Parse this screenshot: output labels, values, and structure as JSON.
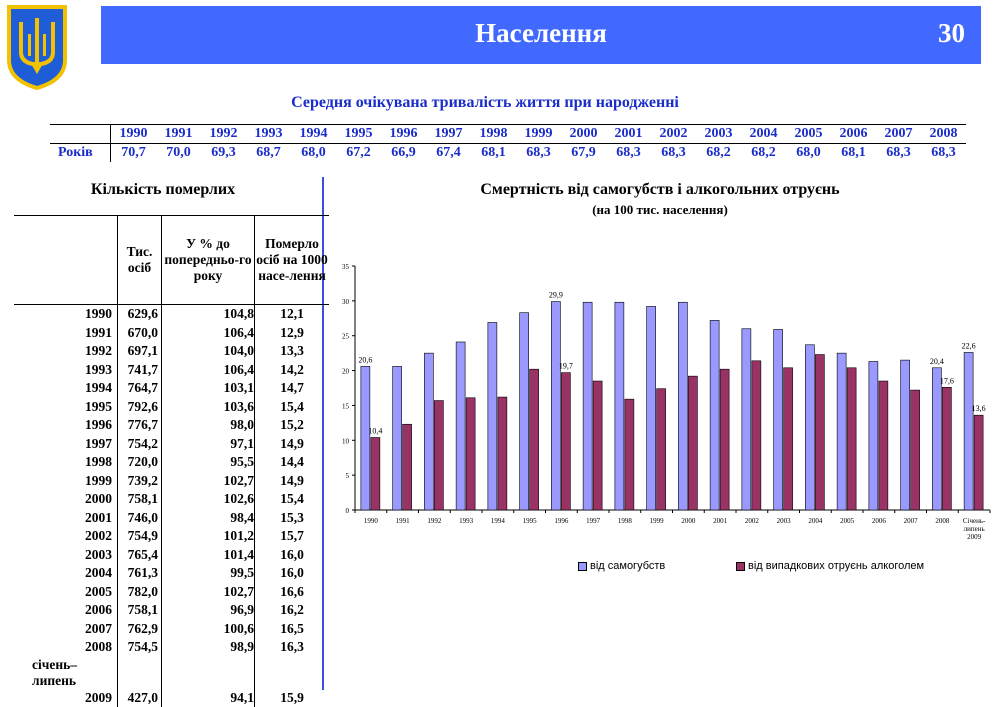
{
  "header": {
    "title": "Населення",
    "page_number": "30"
  },
  "life_expectancy": {
    "title": "Середня очікувана тривалість життя при народженні",
    "row_label": "Років",
    "years": [
      "1990",
      "1991",
      "1992",
      "1993",
      "1994",
      "1995",
      "1996",
      "1997",
      "1998",
      "1999",
      "2000",
      "2001",
      "2002",
      "2003",
      "2004",
      "2005",
      "2006",
      "2007",
      "2008"
    ],
    "values": [
      "70,7",
      "70,0",
      "69,3",
      "68,7",
      "68,0",
      "67,2",
      "66,9",
      "67,4",
      "68,1",
      "68,3",
      "67,9",
      "68,3",
      "68,3",
      "68,2",
      "68,2",
      "68,0",
      "68,1",
      "68,3",
      "68,3"
    ]
  },
  "deaths_table": {
    "title": "Кількість померлих",
    "headers": [
      "",
      "Тис. осіб",
      "У % до попередньо-го року",
      "Померло осіб на 1000 насе-лення"
    ],
    "rows": [
      [
        "1990",
        "629,6",
        "104,8",
        "12,1"
      ],
      [
        "1991",
        "670,0",
        "106,4",
        "12,9"
      ],
      [
        "1992",
        "697,1",
        "104,0",
        "13,3"
      ],
      [
        "1993",
        "741,7",
        "106,4",
        "14,2"
      ],
      [
        "1994",
        "764,7",
        "103,1",
        "14,7"
      ],
      [
        "1995",
        "792,6",
        "103,6",
        "15,4"
      ],
      [
        "1996",
        "776,7",
        "98,0",
        "15,2"
      ],
      [
        "1997",
        "754,2",
        "97,1",
        "14,9"
      ],
      [
        "1998",
        "720,0",
        "95,5",
        "14,4"
      ],
      [
        "1999",
        "739,2",
        "102,7",
        "14,9"
      ],
      [
        "2000",
        "758,1",
        "102,6",
        "15,4"
      ],
      [
        "2001",
        "746,0",
        "98,4",
        "15,3"
      ],
      [
        "2002",
        "754,9",
        "101,2",
        "15,7"
      ],
      [
        "2003",
        "765,4",
        "101,4",
        "16,0"
      ],
      [
        "2004",
        "761,3",
        "99,5",
        "16,0"
      ],
      [
        "2005",
        "782,0",
        "102,7",
        "16,6"
      ],
      [
        "2006",
        "758,1",
        "96,9",
        "16,2"
      ],
      [
        "2007",
        "762,9",
        "100,6",
        "16,5"
      ],
      [
        "2008",
        "754,5",
        "98,9",
        "16,3"
      ],
      [
        "січень–липень",
        "",
        "",
        ""
      ],
      [
        "2009",
        "427,0",
        "94,1",
        "15,9"
      ]
    ]
  },
  "chart_data": {
    "type": "bar",
    "title": "Смертність від самогубств і алкогольних отруєнь",
    "subtitle": "(на 100 тис. населення)",
    "categories": [
      "1990",
      "1991",
      "1992",
      "1993",
      "1994",
      "1995",
      "1996",
      "1997",
      "1998",
      "1999",
      "2000",
      "2001",
      "2002",
      "2003",
      "2004",
      "2005",
      "2006",
      "2007",
      "2008",
      "Січень-липень 2009"
    ],
    "series": [
      {
        "name": "від самогубств",
        "color": "#9999ff",
        "values": [
          20.6,
          20.6,
          22.5,
          24.1,
          26.9,
          28.3,
          29.9,
          29.8,
          29.8,
          29.2,
          29.8,
          27.2,
          26.0,
          25.9,
          23.7,
          22.5,
          21.3,
          21.5,
          20.4,
          22.6
        ]
      },
      {
        "name": "від випадкових отруєнь алкоголем",
        "color": "#993366",
        "values": [
          10.4,
          12.3,
          15.7,
          16.1,
          16.2,
          20.2,
          19.7,
          18.5,
          15.9,
          17.4,
          19.2,
          20.2,
          21.4,
          20.4,
          22.3,
          20.4,
          18.5,
          17.2,
          17.6,
          13.6
        ]
      }
    ],
    "data_labels": [
      {
        "series": 0,
        "index": 0,
        "text": "20,6"
      },
      {
        "series": 1,
        "index": 0,
        "text": "10,4"
      },
      {
        "series": 0,
        "index": 6,
        "text": "29,9"
      },
      {
        "series": 1,
        "index": 6,
        "text": "19,7"
      },
      {
        "series": 0,
        "index": 18,
        "text": "20,4"
      },
      {
        "series": 1,
        "index": 18,
        "text": "17,6"
      },
      {
        "series": 0,
        "index": 19,
        "text": "22,6"
      },
      {
        "series": 1,
        "index": 19,
        "text": "13,6"
      }
    ],
    "ylim": [
      0,
      35
    ],
    "yticks": [
      "0",
      "5",
      "10",
      "15",
      "20",
      "25",
      "30",
      "35"
    ],
    "xtick_labels": [
      "1990",
      "1991",
      "1992",
      "1993",
      "1994",
      "1995",
      "1996",
      "1997",
      "1998",
      "1999",
      "2000",
      "2001",
      "2002",
      "2003",
      "2004",
      "2005",
      "2006",
      "2007",
      "2008",
      [
        "Січень-",
        "липень",
        "2009"
      ]
    ],
    "grid": false,
    "legend_position": "bottom"
  }
}
